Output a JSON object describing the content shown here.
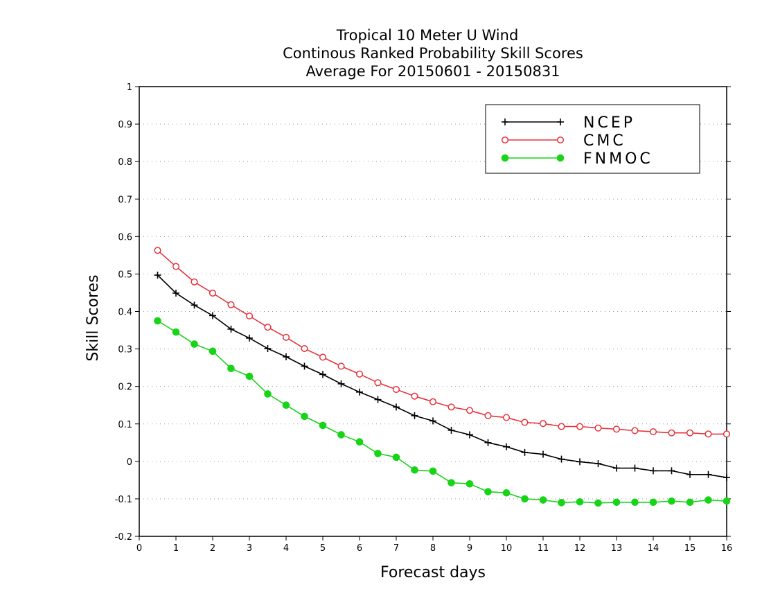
{
  "chart_data": {
    "type": "line",
    "title_lines": [
      "Tropical 10 Meter U Wind",
      "Continous Ranked Probability Skill Scores",
      "Average For 20150601 - 20150831"
    ],
    "xlabel": "Forecast days",
    "ylabel": "Skill Scores",
    "xlim": [
      0,
      16
    ],
    "ylim": [
      -0.2,
      1
    ],
    "xticks": [
      0,
      1,
      2,
      3,
      4,
      5,
      6,
      7,
      8,
      9,
      10,
      11,
      12,
      13,
      14,
      15,
      16
    ],
    "yticks": [
      -0.2,
      -0.1,
      0,
      0.1,
      0.2,
      0.3,
      0.4,
      0.5,
      0.6,
      0.7,
      0.8,
      0.9,
      1
    ],
    "ytick_labels": [
      "-0.2",
      "-0.1",
      "0",
      "0.1",
      "0.2",
      "0.3",
      "0.4",
      "0.5",
      "0.6",
      "0.7",
      "0.8",
      "0.9",
      "1"
    ],
    "grid": "horizontal-dotted",
    "legend_position": "top-right",
    "x": [
      0.5,
      1,
      1.5,
      2,
      2.5,
      3,
      3.5,
      4,
      4.5,
      5,
      5.5,
      6,
      6.5,
      7,
      7.5,
      8,
      8.5,
      9,
      9.5,
      10,
      10.5,
      11,
      11.5,
      12,
      12.5,
      13,
      13.5,
      14,
      14.5,
      15,
      15.5,
      16
    ],
    "series": [
      {
        "name": "NCEP",
        "color": "#000000",
        "marker": "plus",
        "values": [
          0.497,
          0.449,
          0.417,
          0.389,
          0.353,
          0.329,
          0.301,
          0.279,
          0.254,
          0.232,
          0.207,
          0.185,
          0.165,
          0.145,
          0.122,
          0.108,
          0.083,
          0.071,
          0.05,
          0.039,
          0.024,
          0.019,
          0.006,
          -0.001,
          -0.006,
          -0.018,
          -0.018,
          -0.025,
          -0.025,
          -0.035,
          -0.035,
          -0.043
        ]
      },
      {
        "name": "CMC",
        "color": "#e8323c",
        "marker": "open-circle",
        "values": [
          0.563,
          0.52,
          0.479,
          0.449,
          0.418,
          0.388,
          0.358,
          0.331,
          0.301,
          0.278,
          0.254,
          0.233,
          0.21,
          0.192,
          0.174,
          0.159,
          0.145,
          0.136,
          0.122,
          0.117,
          0.104,
          0.101,
          0.093,
          0.093,
          0.089,
          0.086,
          0.082,
          0.079,
          0.076,
          0.076,
          0.073,
          0.073
        ]
      },
      {
        "name": "FNMOC",
        "color": "#18d418",
        "marker": "filled-circle",
        "values": [
          0.375,
          0.345,
          0.313,
          0.294,
          0.248,
          0.227,
          0.18,
          0.15,
          0.12,
          0.096,
          0.071,
          0.052,
          0.021,
          0.011,
          -0.023,
          -0.026,
          -0.057,
          -0.06,
          -0.081,
          -0.084,
          -0.1,
          -0.103,
          -0.11,
          -0.108,
          -0.111,
          -0.109,
          -0.109,
          -0.109,
          -0.106,
          -0.109,
          -0.103,
          -0.106
        ]
      }
    ]
  }
}
